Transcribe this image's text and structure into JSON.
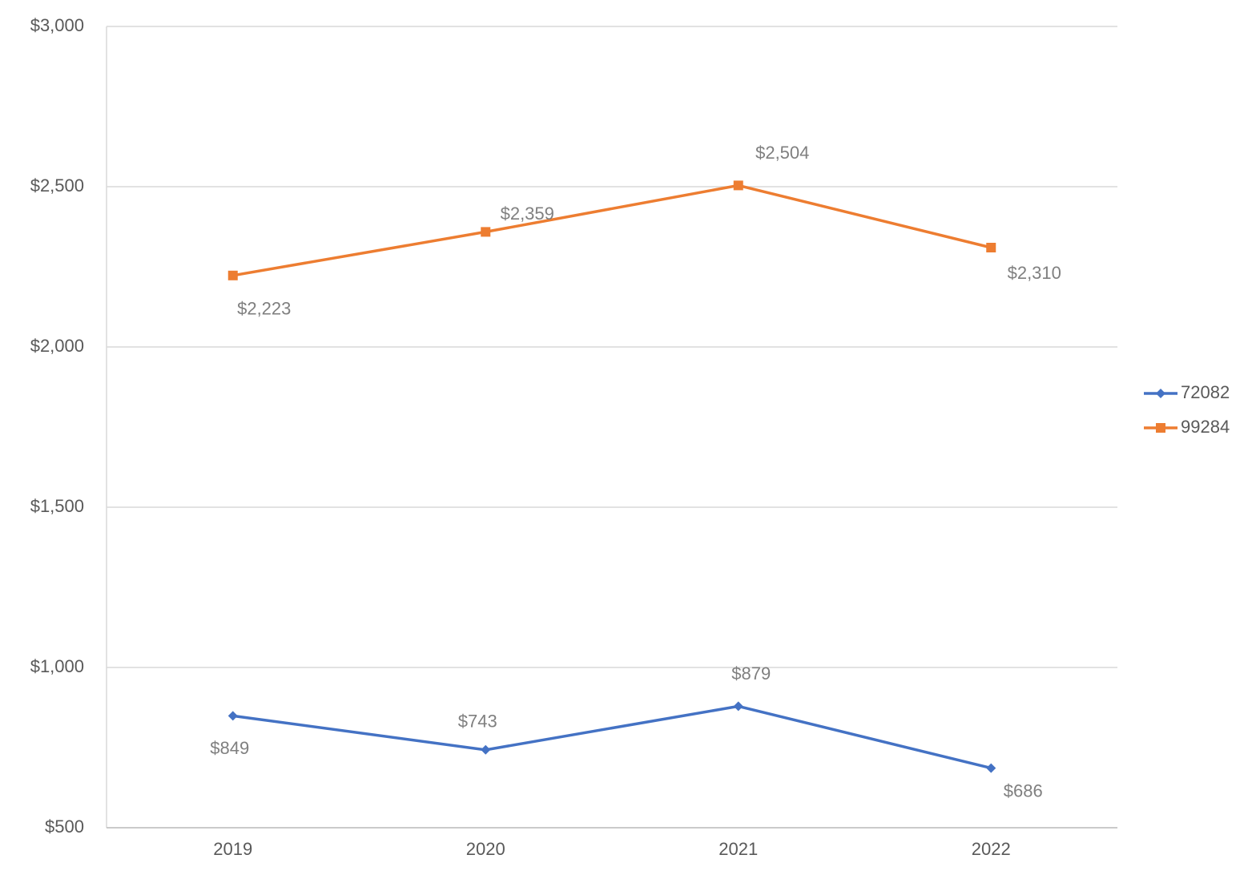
{
  "chart_data": {
    "type": "line",
    "categories": [
      "2019",
      "2020",
      "2021",
      "2022"
    ],
    "series": [
      {
        "name": "72082",
        "color": "#4472c4",
        "marker": "diamond",
        "values": [
          849,
          743,
          879,
          686
        ],
        "value_labels": [
          "$849",
          "$743",
          "$879",
          "$686"
        ]
      },
      {
        "name": "99284",
        "color": "#ed7d31",
        "marker": "square",
        "values": [
          2223,
          2359,
          2504,
          2310
        ],
        "value_labels": [
          "$2,223",
          "$2,359",
          "$2,504",
          "$2,310"
        ]
      }
    ],
    "ylim": [
      500,
      3000
    ],
    "yticks": [
      {
        "value": 500,
        "label": "$500"
      },
      {
        "value": 1000,
        "label": "$1,000"
      },
      {
        "value": 1500,
        "label": "$1,500"
      },
      {
        "value": 2000,
        "label": "$2,000"
      },
      {
        "value": 2500,
        "label": "$2,500"
      },
      {
        "value": 3000,
        "label": "$3,000"
      }
    ],
    "grid": true,
    "legend": "right"
  }
}
